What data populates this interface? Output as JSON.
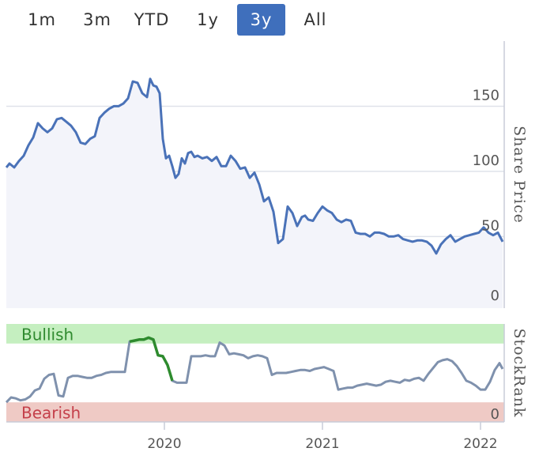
{
  "range_selector": {
    "buttons": [
      {
        "label": "1m",
        "active": false
      },
      {
        "label": "3m",
        "active": false
      },
      {
        "label": "YTD",
        "active": false
      },
      {
        "label": "1y",
        "active": false
      },
      {
        "label": "3y",
        "active": true
      },
      {
        "label": "All",
        "active": false
      }
    ]
  },
  "chart_data": [
    {
      "type": "line",
      "name": "share-price-chart",
      "ylabel": "Share Price",
      "yticks": [
        0,
        50,
        100,
        150
      ],
      "ylim": [
        -5,
        200
      ],
      "x_range": [
        2019.0,
        2022.15
      ],
      "grid": true,
      "colors": {
        "line": "#4a72b8",
        "fill": "#f3f4fa"
      },
      "series": [
        {
          "x": [
            2019.0,
            2019.02,
            2019.05,
            2019.08,
            2019.11,
            2019.14,
            2019.17,
            2019.2,
            2019.23,
            2019.26,
            2019.29,
            2019.32,
            2019.35,
            2019.38,
            2019.41,
            2019.44,
            2019.47,
            2019.5,
            2019.53,
            2019.56,
            2019.59,
            2019.62,
            2019.65,
            2019.68,
            2019.71,
            2019.74,
            2019.77,
            2019.8,
            2019.83,
            2019.86,
            2019.89,
            2019.91,
            2019.93,
            2019.95,
            2019.97,
            2019.99,
            2020.01,
            2020.03,
            2020.05,
            2020.07,
            2020.09,
            2020.11,
            2020.13,
            2020.15,
            2020.17,
            2020.19,
            2020.21,
            2020.24,
            2020.27,
            2020.3,
            2020.33,
            2020.36,
            2020.39,
            2020.42,
            2020.45,
            2020.48,
            2020.51,
            2020.54,
            2020.57,
            2020.6,
            2020.63,
            2020.66,
            2020.69,
            2020.72,
            2020.75,
            2020.78,
            2020.81,
            2020.84,
            2020.87,
            2020.89,
            2020.91,
            2020.94,
            2020.97,
            2021.0,
            2021.03,
            2021.06,
            2021.09,
            2021.12,
            2021.15,
            2021.18,
            2021.21,
            2021.24,
            2021.27,
            2021.3,
            2021.33,
            2021.36,
            2021.39,
            2021.42,
            2021.45,
            2021.48,
            2021.51,
            2021.54,
            2021.57,
            2021.6,
            2021.63,
            2021.66,
            2021.69,
            2021.72,
            2021.75,
            2021.78,
            2021.81,
            2021.84,
            2021.87,
            2021.9,
            2021.93,
            2021.96,
            2021.99,
            2022.02,
            2022.05,
            2022.08,
            2022.11,
            2022.14
          ],
          "values": [
            103,
            106,
            103,
            108,
            112,
            120,
            126,
            137,
            133,
            130,
            133,
            140,
            141,
            138,
            135,
            130,
            122,
            121,
            125,
            127,
            141,
            145,
            148,
            150,
            150,
            152,
            156,
            169,
            168,
            160,
            157,
            171,
            166,
            165,
            160,
            125,
            110,
            112,
            104,
            95,
            98,
            110,
            106,
            114,
            115,
            111,
            112,
            110,
            111,
            108,
            111,
            104,
            104,
            112,
            108,
            102,
            103,
            95,
            99,
            90,
            77,
            80,
            69,
            45,
            48,
            73,
            68,
            58,
            65,
            66,
            63,
            62,
            68,
            73,
            70,
            68,
            63,
            61,
            63,
            62,
            53,
            52,
            52,
            50,
            53,
            53,
            52,
            50,
            50,
            51,
            48,
            47,
            46,
            47,
            47,
            46,
            43,
            37,
            44,
            48,
            51,
            46,
            48,
            50,
            51,
            52,
            53,
            57,
            53,
            51,
            53,
            46
          ]
        }
      ]
    },
    {
      "type": "line",
      "name": "stockrank-chart",
      "ylabel": "StockRank",
      "yticks": [
        0
      ],
      "ylim": [
        0,
        100
      ],
      "x_range": [
        2019.0,
        2022.15
      ],
      "xticks": [
        "2020",
        "2021",
        "2022"
      ],
      "bands": [
        {
          "label": "Bullish",
          "range": [
            80,
            100
          ],
          "color": "#c5efc0",
          "text_color": "#2f8a2f"
        },
        {
          "label": "Bearish",
          "range": [
            0,
            20
          ],
          "color": "#efcac5",
          "text_color": "#c4404a"
        }
      ],
      "colors": {
        "line": "#7f91ad",
        "highlight": "#2e8b2e"
      },
      "series": [
        {
          "x": [
            2019.0,
            2019.03,
            2019.06,
            2019.09,
            2019.12,
            2019.15,
            2019.18,
            2019.21,
            2019.24,
            2019.27,
            2019.3,
            2019.33,
            2019.36,
            2019.39,
            2019.42,
            2019.45,
            2019.48,
            2019.51,
            2019.54,
            2019.57,
            2019.6,
            2019.63,
            2019.66,
            2019.69,
            2019.72,
            2019.75,
            2019.78,
            2019.81,
            2019.84,
            2019.87,
            2019.9,
            2019.93,
            2019.96,
            2019.99,
            2020.02,
            2020.05,
            2020.08,
            2020.11,
            2020.14,
            2020.17,
            2020.2,
            2020.23,
            2020.26,
            2020.29,
            2020.32,
            2020.35,
            2020.38,
            2020.41,
            2020.44,
            2020.47,
            2020.5,
            2020.53,
            2020.56,
            2020.59,
            2020.62,
            2020.65,
            2020.68,
            2020.71,
            2020.74,
            2020.77,
            2020.8,
            2020.83,
            2020.86,
            2020.89,
            2020.92,
            2020.95,
            2020.98,
            2021.01,
            2021.04,
            2021.07,
            2021.1,
            2021.13,
            2021.16,
            2021.19,
            2021.22,
            2021.25,
            2021.28,
            2021.31,
            2021.34,
            2021.37,
            2021.4,
            2021.43,
            2021.46,
            2021.49,
            2021.52,
            2021.55,
            2021.58,
            2021.61,
            2021.64,
            2021.67,
            2021.7,
            2021.73,
            2021.76,
            2021.79,
            2021.82,
            2021.85,
            2021.88,
            2021.91,
            2021.94,
            2021.97,
            2022.0,
            2022.03,
            2022.06,
            2022.09,
            2022.12,
            2022.14
          ],
          "values": [
            20,
            25,
            24,
            22,
            23,
            26,
            32,
            34,
            44,
            48,
            49,
            27,
            26,
            45,
            47,
            47,
            46,
            45,
            45,
            47,
            48,
            50,
            51,
            51,
            51,
            51,
            82,
            83,
            84,
            84,
            86,
            84,
            68,
            67,
            58,
            42,
            40,
            40,
            40,
            67,
            67,
            67,
            68,
            67,
            67,
            81,
            78,
            69,
            70,
            69,
            68,
            65,
            67,
            68,
            67,
            65,
            48,
            50,
            50,
            50,
            51,
            52,
            53,
            53,
            52,
            54,
            55,
            56,
            54,
            52,
            33,
            34,
            35,
            35,
            37,
            38,
            39,
            38,
            37,
            38,
            41,
            42,
            41,
            40,
            43,
            42,
            44,
            45,
            42,
            49,
            55,
            61,
            63,
            64,
            62,
            57,
            50,
            42,
            40,
            37,
            33,
            33,
            41,
            53,
            60,
            54
          ]
        }
      ],
      "highlight_range": [
        2019.78,
        2020.05
      ]
    }
  ]
}
